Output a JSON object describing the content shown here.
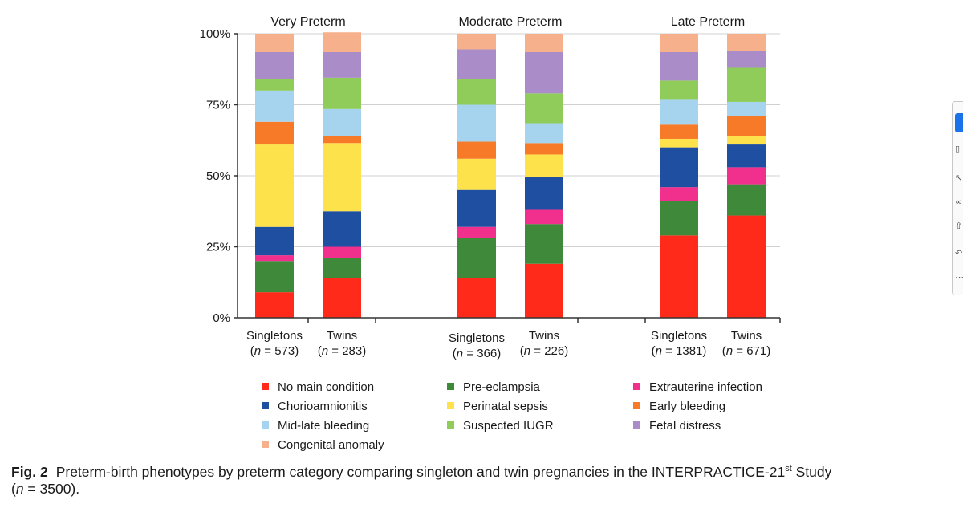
{
  "chart_data": {
    "type": "bar",
    "stacked": true,
    "title": "",
    "xlabel": "",
    "ylabel": "",
    "ylim": [
      0,
      100
    ],
    "y_ticks": [
      "0%",
      "25%",
      "50%",
      "75%",
      "100%"
    ],
    "groups": [
      "Very Preterm",
      "Moderate Preterm",
      "Late Preterm"
    ],
    "categories": [
      {
        "group": "Very Preterm",
        "label": "Singletons",
        "n_label": "(n = 573)"
      },
      {
        "group": "Very Preterm",
        "label": "Twins",
        "n_label": "(n = 283)"
      },
      {
        "group": "Moderate Preterm",
        "label": "Singletons",
        "n_label": "(n = 366)"
      },
      {
        "group": "Moderate Preterm",
        "label": "Twins",
        "n_label": "(n = 226)"
      },
      {
        "group": "Late Preterm",
        "label": "Singletons",
        "n_label": "(n = 1381)"
      },
      {
        "group": "Late Preterm",
        "label": "Twins",
        "n_label": "(n = 671)"
      }
    ],
    "series": [
      {
        "name": "No main condition",
        "color": "#ff2a1a",
        "values": [
          9,
          14,
          14,
          19,
          29,
          36
        ]
      },
      {
        "name": "Pre-eclampsia",
        "color": "#3f8a3a",
        "values": [
          11,
          7,
          14,
          14,
          12,
          11
        ]
      },
      {
        "name": "Extrauterine infection",
        "color": "#f0308c",
        "values": [
          2,
          4,
          4,
          5,
          5,
          6
        ]
      },
      {
        "name": "Chorioamnionitis",
        "color": "#1f4fa0",
        "values": [
          10,
          12.5,
          13,
          11.5,
          14,
          8
        ]
      },
      {
        "name": "Perinatal sepsis",
        "color": "#fde24b",
        "values": [
          29,
          24,
          11,
          8,
          3,
          3
        ]
      },
      {
        "name": "Early bleeding",
        "color": "#f77a28",
        "values": [
          8,
          2.5,
          6,
          4,
          5,
          7
        ]
      },
      {
        "name": "Mid-late bleeding",
        "color": "#a6d4ef",
        "values": [
          11,
          9.5,
          13,
          7,
          9,
          5
        ]
      },
      {
        "name": "Suspected IUGR",
        "color": "#8fcc5a",
        "values": [
          4,
          11,
          9,
          10.5,
          6.5,
          12
        ]
      },
      {
        "name": "Fetal distress",
        "color": "#a98cc8",
        "values": [
          9.5,
          9,
          10.5,
          14.5,
          10,
          6
        ]
      },
      {
        "name": "Congenital anomaly",
        "color": "#f7b08c",
        "values": [
          6.5,
          7,
          5.5,
          6.5,
          6.5,
          6
        ]
      }
    ],
    "legend_position": "bottom"
  },
  "caption": {
    "fig_label": "Fig. 2",
    "text": "Preterm-birth phenotypes by preterm category comparing singleton and twin pregnancies in the INTERPRACTICE-21",
    "superscript": "st",
    "text_after": " Study",
    "n_open": "(",
    "n_var": "n",
    "n_rest": " = 3500)."
  },
  "side_panel": {
    "icons": [
      "select-icon",
      "copy-icon",
      "pointer-icon",
      "link-icon",
      "share-icon",
      "undo-icon",
      "more-icon"
    ]
  }
}
